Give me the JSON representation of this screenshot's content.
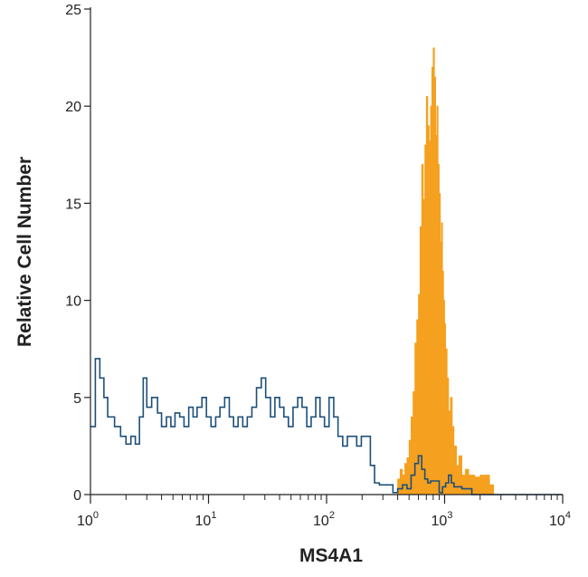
{
  "chart_data": {
    "type": "histogram",
    "xlabel": "MS4A1",
    "ylabel": "Relative Cell Number",
    "xscale": "log",
    "xlim": [
      1,
      10000
    ],
    "ylim": [
      0,
      25
    ],
    "x_ticks": [
      {
        "base": "10",
        "exp": "0",
        "value": 1
      },
      {
        "base": "10",
        "exp": "1",
        "value": 10
      },
      {
        "base": "10",
        "exp": "2",
        "value": 100
      },
      {
        "base": "10",
        "exp": "3",
        "value": 1000
      },
      {
        "base": "10",
        "exp": "4",
        "value": 10000
      }
    ],
    "y_ticks": [
      {
        "label": "0",
        "value": 0
      },
      {
        "label": "5",
        "value": 5
      },
      {
        "label": "10",
        "value": 10
      },
      {
        "label": "15",
        "value": 15
      },
      {
        "label": "20",
        "value": 20
      },
      {
        "label": "25",
        "value": 25
      }
    ],
    "grid": false,
    "series": [
      {
        "style": "filled",
        "color": "#f5a01e",
        "points": [
          [
            360,
            0
          ],
          [
            400,
            0.8
          ],
          [
            420,
            1.3
          ],
          [
            440,
            1.0
          ],
          [
            460,
            1.6
          ],
          [
            480,
            1.9
          ],
          [
            500,
            2.8
          ],
          [
            520,
            4.0
          ],
          [
            540,
            5.3
          ],
          [
            560,
            7.8
          ],
          [
            580,
            9.0
          ],
          [
            600,
            10.3
          ],
          [
            620,
            13.8
          ],
          [
            640,
            17.0
          ],
          [
            660,
            15.2
          ],
          [
            680,
            18.0
          ],
          [
            700,
            20.5
          ],
          [
            720,
            19.0
          ],
          [
            740,
            18.2
          ],
          [
            760,
            20.0
          ],
          [
            780,
            22.0
          ],
          [
            800,
            23.0
          ],
          [
            820,
            21.5
          ],
          [
            840,
            18.5
          ],
          [
            860,
            20.0
          ],
          [
            880,
            17.0
          ],
          [
            900,
            15.5
          ],
          [
            920,
            13.0
          ],
          [
            940,
            14.0
          ],
          [
            960,
            11.5
          ],
          [
            980,
            10.0
          ],
          [
            1000,
            8.8
          ],
          [
            1020,
            7.5
          ],
          [
            1050,
            6.0
          ],
          [
            1080,
            4.3
          ],
          [
            1120,
            5.0
          ],
          [
            1160,
            3.5
          ],
          [
            1200,
            2.5
          ],
          [
            1260,
            1.5
          ],
          [
            1320,
            2.0
          ],
          [
            1400,
            1.0
          ],
          [
            1500,
            1.3
          ],
          [
            1600,
            1.0
          ],
          [
            1800,
            0.9
          ],
          [
            2000,
            1.0
          ],
          [
            2200,
            1.0
          ],
          [
            2400,
            0.5
          ],
          [
            2600,
            0
          ]
        ]
      },
      {
        "style": "outline",
        "color": "#1c4f7a",
        "points": [
          [
            1.0,
            3.5
          ],
          [
            1.1,
            7.0
          ],
          [
            1.2,
            6.0
          ],
          [
            1.3,
            5.0
          ],
          [
            1.4,
            4.0
          ],
          [
            1.6,
            3.5
          ],
          [
            1.8,
            3.0
          ],
          [
            2.0,
            2.6
          ],
          [
            2.2,
            3.0
          ],
          [
            2.4,
            2.6
          ],
          [
            2.6,
            4.0
          ],
          [
            2.8,
            6.0
          ],
          [
            3.0,
            4.5
          ],
          [
            3.3,
            5.0
          ],
          [
            3.7,
            4.2
          ],
          [
            4.0,
            3.5
          ],
          [
            4.4,
            4.0
          ],
          [
            4.8,
            3.5
          ],
          [
            5.2,
            4.2
          ],
          [
            5.7,
            4.0
          ],
          [
            6.2,
            3.5
          ],
          [
            6.8,
            4.5
          ],
          [
            7.4,
            4.0
          ],
          [
            8.0,
            4.5
          ],
          [
            8.8,
            5.0
          ],
          [
            9.6,
            4.0
          ],
          [
            10.5,
            3.5
          ],
          [
            11.5,
            4.0
          ],
          [
            12.5,
            4.5
          ],
          [
            13.7,
            5.0
          ],
          [
            15.0,
            4.0
          ],
          [
            16.3,
            3.5
          ],
          [
            17.8,
            4.0
          ],
          [
            19.5,
            3.5
          ],
          [
            21.3,
            4.0
          ],
          [
            23.3,
            4.5
          ],
          [
            25.5,
            5.5
          ],
          [
            28.0,
            6.0
          ],
          [
            30.5,
            5.0
          ],
          [
            33.5,
            4.0
          ],
          [
            36.5,
            5.0
          ],
          [
            40.0,
            4.5
          ],
          [
            43.5,
            4.0
          ],
          [
            47.5,
            3.5
          ],
          [
            52.0,
            4.5
          ],
          [
            57.0,
            5.0
          ],
          [
            62.0,
            4.5
          ],
          [
            68.0,
            3.5
          ],
          [
            74.0,
            4.0
          ],
          [
            81.0,
            5.0
          ],
          [
            88.0,
            4.0
          ],
          [
            96.0,
            3.5
          ],
          [
            105,
            5.0
          ],
          [
            115,
            4.0
          ],
          [
            125,
            3.0
          ],
          [
            137,
            2.5
          ],
          [
            150,
            3.0
          ],
          [
            164,
            3.0
          ],
          [
            180,
            2.5
          ],
          [
            197,
            3.0
          ],
          [
            215,
            3.0
          ],
          [
            235,
            1.5
          ],
          [
            255,
            0.6
          ],
          [
            280,
            0.5
          ],
          [
            305,
            0.5
          ],
          [
            335,
            0.5
          ],
          [
            365,
            0.1
          ],
          [
            400,
            0.3
          ],
          [
            440,
            0.5
          ],
          [
            480,
            0.3
          ],
          [
            520,
            1.0
          ],
          [
            560,
            1.6
          ],
          [
            600,
            2.0
          ],
          [
            640,
            1.3
          ],
          [
            680,
            0.8
          ],
          [
            720,
            0.6
          ],
          [
            760,
            0.7
          ],
          [
            800,
            0.7
          ],
          [
            850,
            0.7
          ],
          [
            900,
            0.1
          ],
          [
            960,
            0.4
          ],
          [
            1020,
            0.6
          ],
          [
            1080,
            1.0
          ],
          [
            1140,
            0.6
          ],
          [
            1200,
            0.4
          ],
          [
            1260,
            0.4
          ],
          [
            1400,
            0.3
          ],
          [
            1700,
            0
          ],
          [
            10000,
            0
          ]
        ]
      }
    ]
  }
}
